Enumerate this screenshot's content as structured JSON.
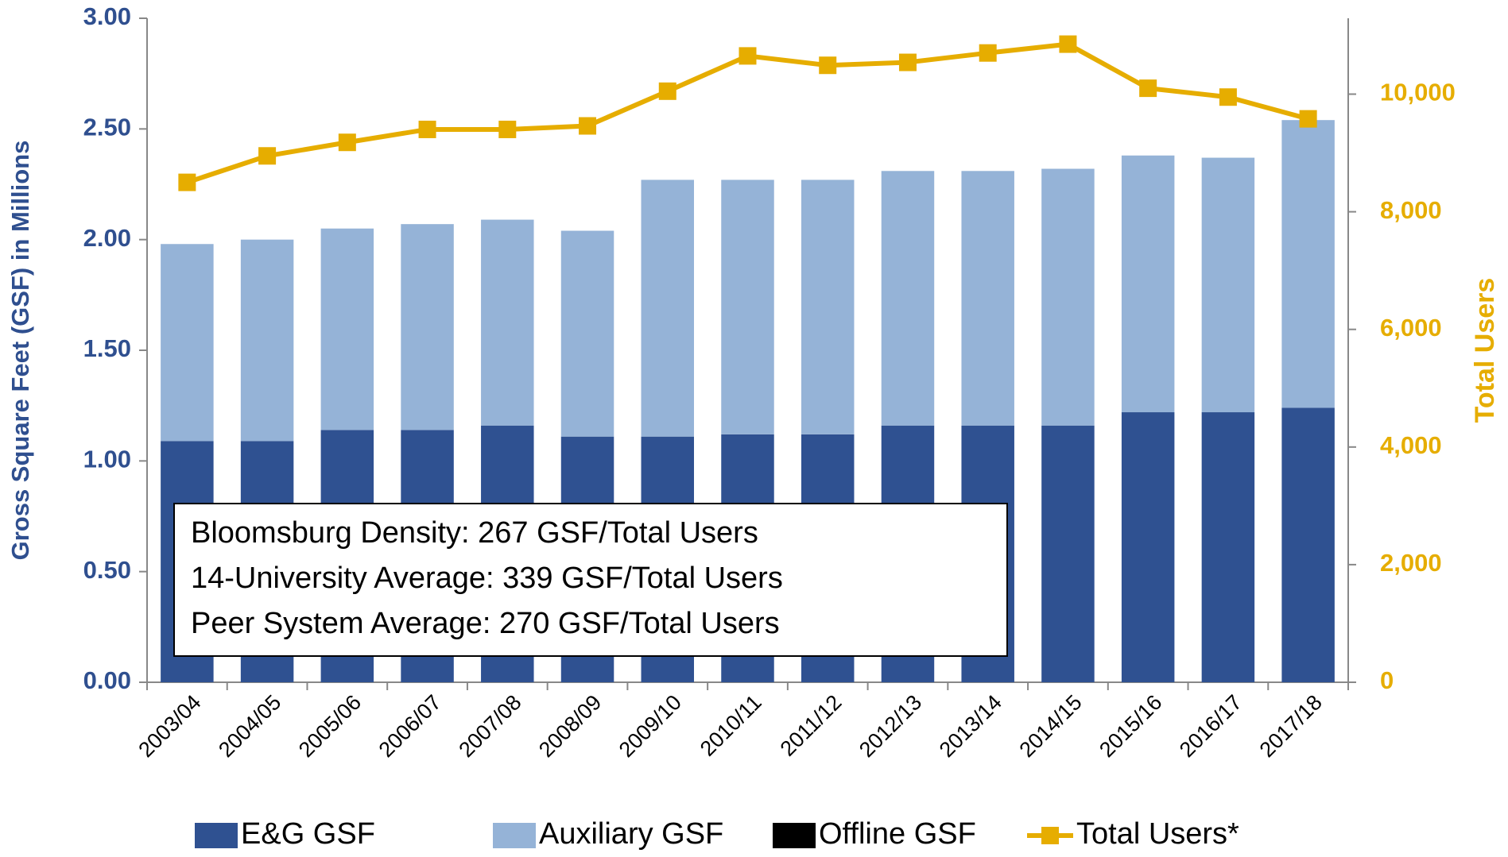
{
  "chart_data": {
    "type": "bar",
    "categories": [
      "2003/04",
      "2004/05",
      "2005/06",
      "2006/07",
      "2007/08",
      "2008/09",
      "2009/10",
      "2010/11",
      "2011/12",
      "2012/13",
      "2013/14",
      "2014/15",
      "2015/16",
      "2016/17",
      "2017/18"
    ],
    "series": [
      {
        "name": "E&G GSF",
        "color": "#2f5191",
        "values": [
          1.09,
          1.09,
          1.14,
          1.14,
          1.16,
          1.11,
          1.11,
          1.12,
          1.12,
          1.16,
          1.16,
          1.16,
          1.22,
          1.22,
          1.24
        ]
      },
      {
        "name": "Auxiliary GSF",
        "color": "#95b3d7",
        "values": [
          0.89,
          0.91,
          0.91,
          0.93,
          0.93,
          0.93,
          1.16,
          1.15,
          1.15,
          1.15,
          1.15,
          1.16,
          1.16,
          1.15,
          1.3
        ]
      },
      {
        "name": "Offline GSF",
        "color": "#000000",
        "values": [
          0,
          0,
          0,
          0,
          0,
          0,
          0,
          0,
          0,
          0,
          0,
          0,
          0,
          0,
          0
        ]
      },
      {
        "name": "Total Users*",
        "color": "#e6ad00",
        "type": "line",
        "axis": "y2",
        "values": [
          8500,
          8950,
          9180,
          9400,
          9400,
          9460,
          10050,
          10650,
          10490,
          10540,
          10700,
          10850,
          10100,
          9950,
          9580
        ]
      }
    ],
    "ylabel": "Gross Square Feet (GSF) in Millions",
    "y2label": "Total Users",
    "ylim": [
      0,
      3
    ],
    "yticks": [
      {
        "value": 0,
        "label": "0.00"
      },
      {
        "value": 0.5,
        "label": "0.50"
      },
      {
        "value": 1,
        "label": "1.00"
      },
      {
        "value": 1.5,
        "label": "1.50"
      },
      {
        "value": 2,
        "label": "2.00"
      },
      {
        "value": 2.5,
        "label": "2.50"
      },
      {
        "value": 3,
        "label": "3.00"
      }
    ],
    "y2lim": [
      0,
      11290
    ],
    "y2ticks": [
      0,
      {
        "value": 2000,
        "label": "2,000"
      },
      {
        "value": 4000,
        "label": "4,000"
      },
      {
        "value": 6000,
        "label": "6,000"
      },
      {
        "value": 8000,
        "label": "8,000"
      },
      {
        "value": 10000,
        "label": "10,000"
      }
    ],
    "annotation": [
      "Bloomsburg Density: 267 GSF/Total Users",
      "14-University Average: 339 GSF/Total Users",
      "Peer System Average: 270 GSF/Total Users"
    ],
    "legend": "bottom"
  }
}
